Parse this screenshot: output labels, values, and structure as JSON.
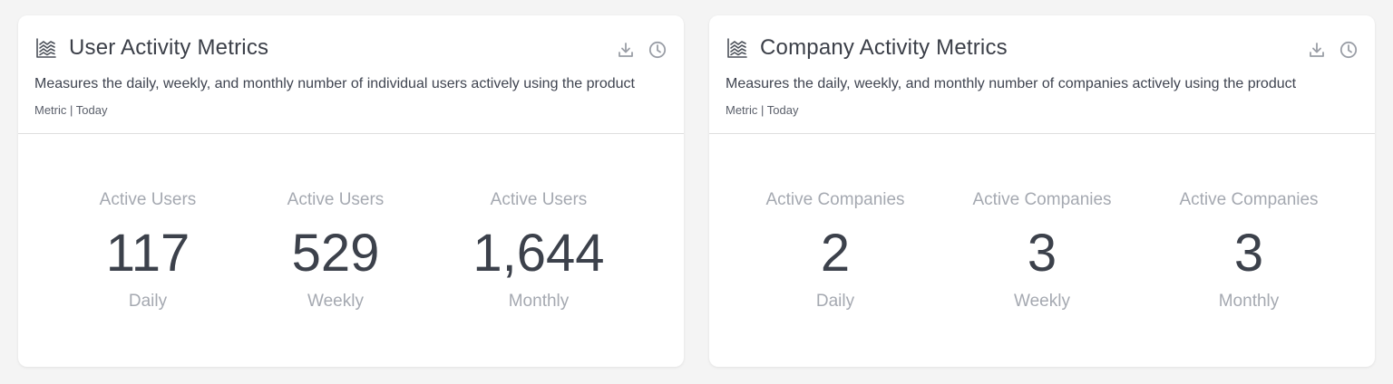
{
  "colors": {
    "background": "#f4f4f4",
    "card": "#ffffff",
    "title_text": "#3b3f48",
    "value_text": "#3c414b",
    "muted_text": "#a5a9b1",
    "icon": "#9a9ea6",
    "divider": "#dedede"
  },
  "cards": [
    {
      "title": "User Activity Metrics",
      "title_icon": "chart-lines-icon",
      "description": "Measures the daily, weekly, and monthly number of individual users actively using the product",
      "meta": "Metric | Today",
      "actions": [
        {
          "name": "download-icon"
        },
        {
          "name": "clock-icon"
        }
      ],
      "stats": [
        {
          "label": "Active Users",
          "value": "117",
          "period": "Daily"
        },
        {
          "label": "Active Users",
          "value": "529",
          "period": "Weekly"
        },
        {
          "label": "Active Users",
          "value": "1,644",
          "period": "Monthly"
        }
      ]
    },
    {
      "title": "Company Activity Metrics",
      "title_icon": "chart-lines-icon",
      "description": "Measures the daily, weekly, and monthly number of companies actively using the product",
      "meta": "Metric | Today",
      "actions": [
        {
          "name": "download-icon"
        },
        {
          "name": "clock-icon"
        }
      ],
      "stats": [
        {
          "label": "Active Companies",
          "value": "2",
          "period": "Daily"
        },
        {
          "label": "Active Companies",
          "value": "3",
          "period": "Weekly"
        },
        {
          "label": "Active Companies",
          "value": "3",
          "period": "Monthly"
        }
      ]
    }
  ]
}
